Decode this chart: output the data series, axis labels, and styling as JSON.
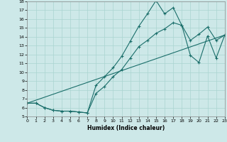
{
  "xlabel": "Humidex (Indice chaleur)",
  "bg_color": "#cde8e8",
  "grid_color": "#aad4d0",
  "line_color": "#1a6e6a",
  "xlim": [
    0,
    23
  ],
  "ylim": [
    5,
    18
  ],
  "xticks": [
    0,
    1,
    2,
    3,
    4,
    5,
    6,
    7,
    8,
    9,
    10,
    11,
    12,
    13,
    14,
    15,
    16,
    17,
    18,
    19,
    20,
    21,
    22,
    23
  ],
  "yticks": [
    5,
    6,
    7,
    8,
    9,
    10,
    11,
    12,
    13,
    14,
    15,
    16,
    17,
    18
  ],
  "line1_x": [
    0,
    1,
    2,
    3,
    4,
    5,
    6,
    7,
    8,
    9,
    10,
    11,
    12,
    13,
    14,
    15,
    16,
    17,
    18,
    19,
    20,
    21,
    22,
    23
  ],
  "line1_y": [
    6.5,
    6.5,
    6.0,
    5.7,
    5.6,
    5.6,
    5.5,
    5.4,
    8.5,
    9.5,
    10.5,
    11.8,
    13.5,
    15.2,
    16.6,
    18.1,
    16.6,
    17.3,
    15.3,
    11.9,
    11.1,
    14.1,
    11.6,
    14.2
  ],
  "line2_x": [
    0,
    1,
    2,
    3,
    4,
    5,
    6,
    7,
    8,
    9,
    10,
    11,
    12,
    13,
    14,
    15,
    16,
    17,
    18,
    19,
    20,
    21,
    22,
    23
  ],
  "line2_y": [
    6.5,
    6.5,
    6.0,
    5.7,
    5.6,
    5.6,
    5.5,
    5.4,
    7.6,
    8.4,
    9.5,
    10.3,
    11.6,
    12.9,
    13.6,
    14.4,
    14.9,
    15.6,
    15.3,
    13.6,
    14.3,
    15.1,
    13.6,
    14.2
  ],
  "line3_x": [
    0,
    23
  ],
  "line3_y": [
    6.5,
    14.2
  ]
}
